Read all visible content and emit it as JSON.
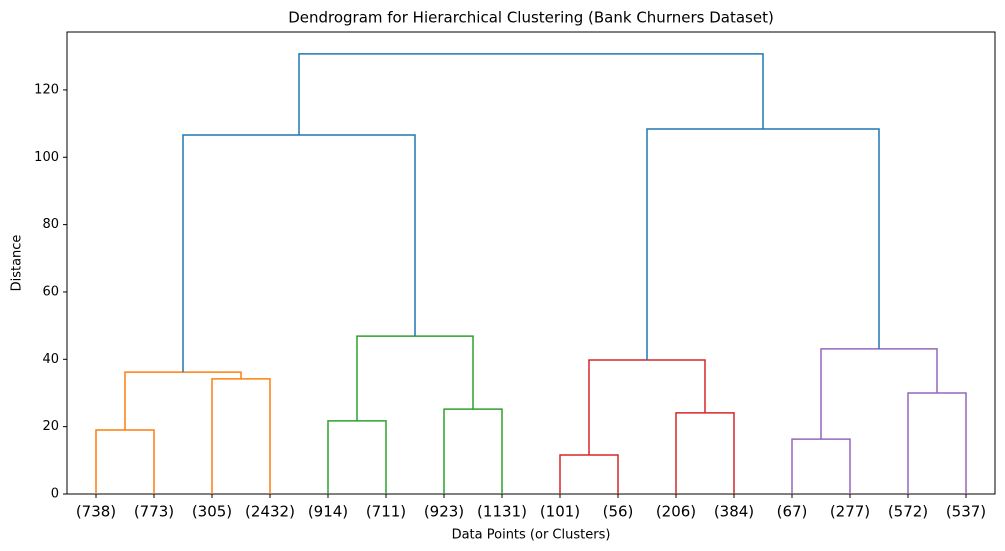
{
  "chart_data": {
    "type": "dendrogram",
    "title": "Dendrogram for Hierarchical Clustering (Bank Churners Dataset)",
    "x_label": "Data Points (or Clusters)",
    "y_label": "Distance",
    "ylim": [
      0,
      137.2
    ],
    "yticks": [
      0,
      20,
      40,
      60,
      80,
      100,
      120
    ],
    "tree": {
      "height": 130.7,
      "color": "#1f77b4",
      "children": [
        {
          "height": 106.6,
          "color": "#1f77b4",
          "children": [
            {
              "height": 36.2,
              "color": "#ff7f0e",
              "children": [
                {
                  "height": 19.0,
                  "color": "#ff7f0e",
                  "children": [
                    {
                      "label": "(738)"
                    },
                    {
                      "label": "(773)"
                    }
                  ]
                },
                {
                  "height": 34.2,
                  "color": "#ff7f0e",
                  "children": [
                    {
                      "label": "(305)"
                    },
                    {
                      "label": "(2432)"
                    }
                  ]
                }
              ]
            },
            {
              "height": 46.9,
              "color": "#2ca02c",
              "children": [
                {
                  "height": 21.7,
                  "color": "#2ca02c",
                  "children": [
                    {
                      "label": "(914)"
                    },
                    {
                      "label": "(711)"
                    }
                  ]
                },
                {
                  "height": 25.2,
                  "color": "#2ca02c",
                  "children": [
                    {
                      "label": "(923)"
                    },
                    {
                      "label": "(1131)"
                    }
                  ]
                }
              ]
            }
          ]
        },
        {
          "height": 108.4,
          "color": "#1f77b4",
          "children": [
            {
              "height": 39.8,
              "color": "#d62728",
              "children": [
                {
                  "height": 11.6,
                  "color": "#d62728",
                  "children": [
                    {
                      "label": "(101)"
                    },
                    {
                      "label": "(56)"
                    }
                  ]
                },
                {
                  "height": 24.1,
                  "color": "#d62728",
                  "children": [
                    {
                      "label": "(206)"
                    },
                    {
                      "label": "(384)"
                    }
                  ]
                }
              ]
            },
            {
              "height": 43.1,
              "color": "#9467bd",
              "children": [
                {
                  "height": 16.3,
                  "color": "#9467bd",
                  "children": [
                    {
                      "label": "(67)"
                    },
                    {
                      "label": "(277)"
                    }
                  ]
                },
                {
                  "height": 30.0,
                  "color": "#9467bd",
                  "children": [
                    {
                      "label": "(572)"
                    },
                    {
                      "label": "(537)"
                    }
                  ]
                }
              ]
            }
          ]
        }
      ]
    }
  }
}
